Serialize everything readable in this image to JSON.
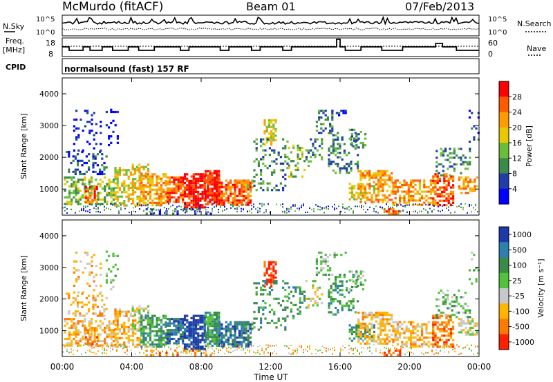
{
  "header": {
    "station": "McMurdo (fitACF)",
    "beam": "Beam 01",
    "date": "07/Feb/2013"
  },
  "status_panels": {
    "nsky_label": "N.Sky",
    "nsky_ticks": [
      "10^5",
      "10^0"
    ],
    "nsearch_label": "N.Search",
    "nsearch_ticks": [
      "10^5",
      "10^0"
    ],
    "freq_label_line1": "Freq.",
    "freq_label_line2": "[MHz]",
    "freq_ticks": [
      "18",
      "8"
    ],
    "nave_label": "Nave",
    "nave_ticks": [
      "60",
      "0"
    ],
    "cpid_label": "CPID",
    "cpid_text": "normalsound (fast) 157 RF"
  },
  "chart_data": [
    {
      "type": "heatmap",
      "name": "power",
      "ylabel": "Slant Range [km]",
      "y_ticks": [
        "4000",
        "3000",
        "2000",
        "1000"
      ],
      "colorbar_label": "Power [dB]",
      "colorbar_ticks": [
        "28",
        "24",
        "20",
        "16",
        "12",
        "8",
        "4"
      ],
      "colorbar_colors": [
        "#ff0000",
        "#ff5a00",
        "#ff9a00",
        "#e8c800",
        "#6abd38",
        "#3a8a4a",
        "#1f3ea8",
        "#0000ff"
      ],
      "ylim": [
        180,
        4500
      ],
      "xlim_hours": [
        0,
        24
      ]
    },
    {
      "type": "heatmap",
      "name": "velocity",
      "ylabel": "Slant Range [km]",
      "y_ticks": [
        "4000",
        "3000",
        "2000",
        "1000"
      ],
      "colorbar_label": "Velocity [m s⁻¹]",
      "colorbar_ticks": [
        "1000",
        "500",
        "100",
        "25",
        "-25",
        "-100",
        "-500",
        "-1000"
      ],
      "colorbar_colors": [
        "#1c3aa8",
        "#2f7fb0",
        "#3a8a4a",
        "#52c23a",
        "#c8c8c8",
        "#ffb400",
        "#ff7a00",
        "#ff2000"
      ],
      "ylim": [
        180,
        4500
      ],
      "xlim_hours": [
        0,
        24
      ]
    }
  ],
  "x_axis": {
    "label": "Time UT",
    "ticks": [
      "00:00",
      "04:00",
      "08:00",
      "12:00",
      "16:00",
      "20:00",
      "00:00"
    ]
  }
}
